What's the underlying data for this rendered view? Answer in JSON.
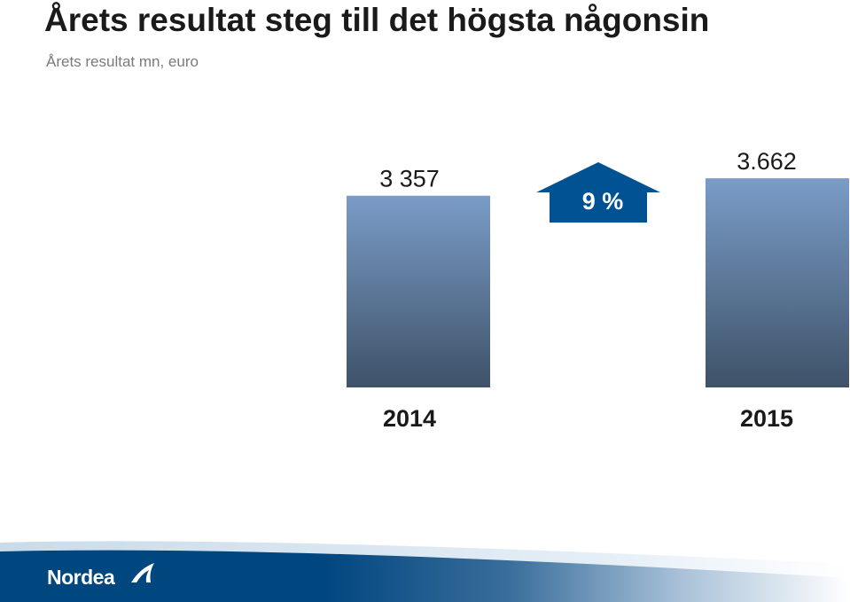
{
  "header": {
    "title": "Årets resultat steg till det högsta någonsin",
    "subtitle": "Årets resultat mn, euro"
  },
  "chart_data": {
    "type": "bar",
    "categories": [
      "2014",
      "2015"
    ],
    "values": [
      3357,
      3662
    ],
    "value_labels": [
      "3 357",
      "3.662"
    ],
    "change_label": "9 %",
    "bar_color_top": "#7a9cc7",
    "bar_color_bottom": "#3e5268",
    "arrow_color": "#005293"
  },
  "brand": {
    "name": "Nordea",
    "color": "#00467f"
  }
}
